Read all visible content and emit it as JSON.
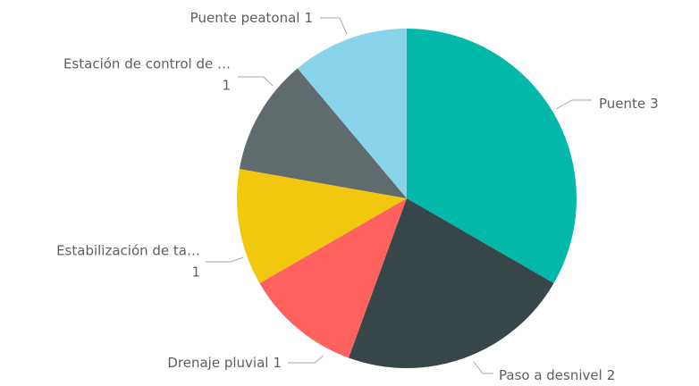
{
  "chart_data": {
    "type": "pie",
    "categories": [
      "Puente",
      "Paso a desnivel",
      "Drenaje pluvial",
      "Estabilización de ta…",
      "Estación de control de …",
      "Puente peatonal"
    ],
    "values": [
      3,
      2,
      1,
      1,
      1,
      1
    ],
    "colors": [
      "#01B8AA",
      "#374649",
      "#FD625E",
      "#F2C80F",
      "#5F6B6D",
      "#8AD4EB"
    ]
  }
}
